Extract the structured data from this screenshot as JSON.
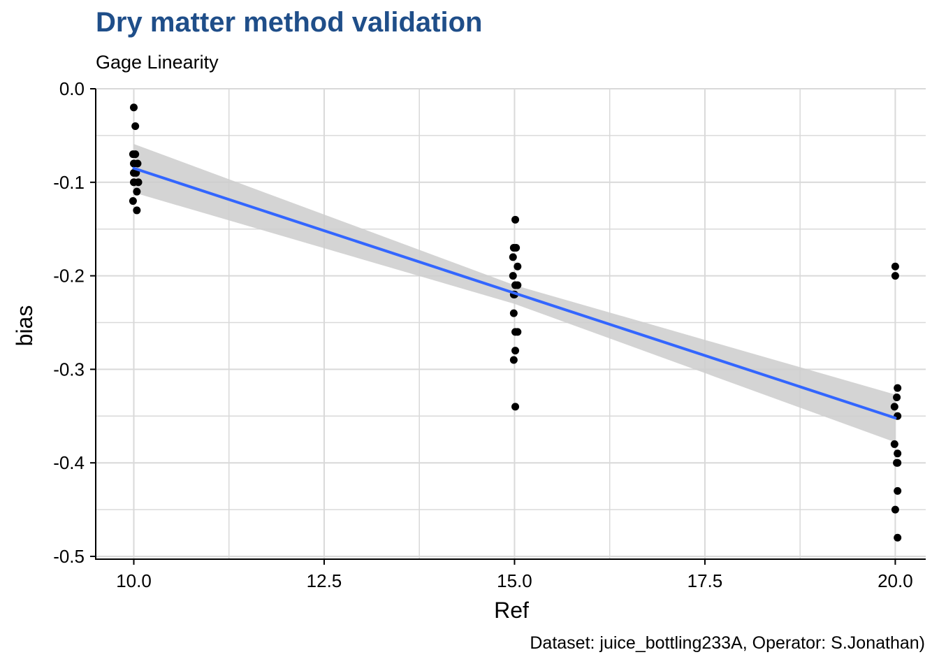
{
  "chart_data": {
    "type": "scatter",
    "title": "Dry matter method validation",
    "subtitle": "Gage Linearity",
    "caption": "Dataset: juice_bottling233A, Operator: S.Jonathan)",
    "xlabel": "Ref",
    "ylabel": "bias",
    "xlim": [
      9.5,
      20.4
    ],
    "ylim": [
      -0.503,
      0.0
    ],
    "x_ticks": [
      "10.0",
      "12.5",
      "15.0",
      "17.5",
      "20.0"
    ],
    "y_ticks": [
      "0.0",
      "-0.1",
      "-0.2",
      "-0.3",
      "-0.4",
      "-0.5"
    ],
    "grid": true,
    "points": [
      {
        "x": 10.0,
        "y": -0.02
      },
      {
        "x": 10.02,
        "y": -0.04
      },
      {
        "x": 9.99,
        "y": -0.07
      },
      {
        "x": 10.02,
        "y": -0.07
      },
      {
        "x": 10.0,
        "y": -0.08
      },
      {
        "x": 10.05,
        "y": -0.08
      },
      {
        "x": 10.0,
        "y": -0.09
      },
      {
        "x": 10.03,
        "y": -0.09
      },
      {
        "x": 10.0,
        "y": -0.1
      },
      {
        "x": 10.06,
        "y": -0.1
      },
      {
        "x": 10.04,
        "y": -0.11
      },
      {
        "x": 9.99,
        "y": -0.12
      },
      {
        "x": 10.04,
        "y": -0.13
      },
      {
        "x": 15.01,
        "y": -0.14
      },
      {
        "x": 14.99,
        "y": -0.17
      },
      {
        "x": 15.02,
        "y": -0.17
      },
      {
        "x": 14.98,
        "y": -0.18
      },
      {
        "x": 15.04,
        "y": -0.19
      },
      {
        "x": 14.98,
        "y": -0.2
      },
      {
        "x": 15.01,
        "y": -0.21
      },
      {
        "x": 15.04,
        "y": -0.21
      },
      {
        "x": 14.99,
        "y": -0.22
      },
      {
        "x": 15.0,
        "y": -0.22
      },
      {
        "x": 14.99,
        "y": -0.24
      },
      {
        "x": 15.01,
        "y": -0.26
      },
      {
        "x": 15.04,
        "y": -0.26
      },
      {
        "x": 15.01,
        "y": -0.28
      },
      {
        "x": 14.99,
        "y": -0.29
      },
      {
        "x": 15.01,
        "y": -0.34
      },
      {
        "x": 20.0,
        "y": -0.19
      },
      {
        "x": 20.0,
        "y": -0.2
      },
      {
        "x": 20.03,
        "y": -0.32
      },
      {
        "x": 20.02,
        "y": -0.33
      },
      {
        "x": 19.99,
        "y": -0.34
      },
      {
        "x": 20.03,
        "y": -0.35
      },
      {
        "x": 19.99,
        "y": -0.38
      },
      {
        "x": 20.03,
        "y": -0.39
      },
      {
        "x": 20.02,
        "y": -0.4
      },
      {
        "x": 20.03,
        "y": -0.4
      },
      {
        "x": 20.03,
        "y": -0.43
      },
      {
        "x": 20.0,
        "y": -0.45
      },
      {
        "x": 20.03,
        "y": -0.48
      }
    ],
    "fit_line": {
      "x": [
        10.0,
        20.0
      ],
      "y": [
        -0.085,
        -0.352
      ]
    },
    "confidence_band": {
      "x": [
        10.0,
        15.0,
        20.0
      ],
      "upper": [
        -0.059,
        -0.21,
        -0.327
      ],
      "lower": [
        -0.111,
        -0.23,
        -0.378
      ]
    },
    "colors": {
      "title": "#1f4e89",
      "points": "#000000",
      "fit_line": "#3366ff",
      "band": "#cccccc",
      "grid": "#d9d9d9"
    }
  }
}
